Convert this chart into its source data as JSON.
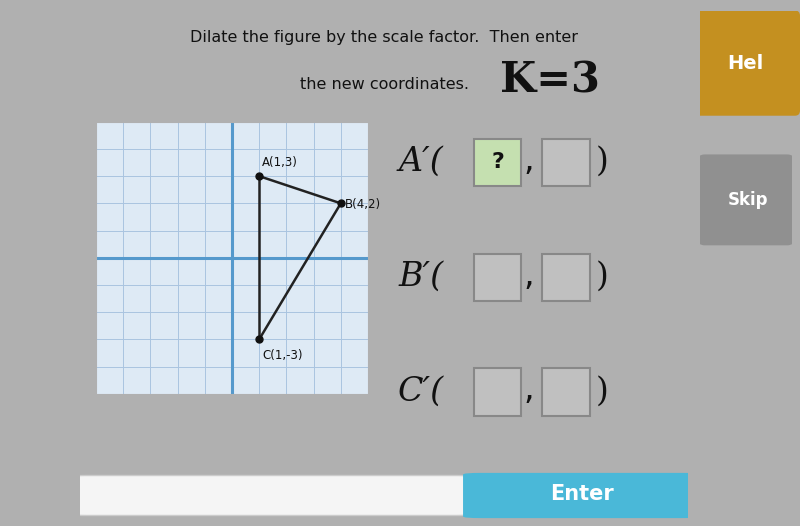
{
  "bg_color": "#b0b0b0",
  "card_color": "#ffffff",
  "title_line1": "Dilate the figure by the scale factor.  Then enter",
  "title_line2": "the new coordinates.",
  "grid_bg": "#deeaf5",
  "grid_color": "#aac4e0",
  "axis_color": "#5599cc",
  "points": {
    "A": [
      1,
      3
    ],
    "B": [
      4,
      2
    ],
    "C": [
      1,
      -3
    ]
  },
  "point_color": "#111111",
  "line_color": "#222222",
  "k_text": "K=3",
  "box_green": "#c5e0b0",
  "box_gray": "#c0c0c0",
  "box_border": "#888888",
  "enter_bg": "#4ab8d8",
  "enter_text": "Enter",
  "help_bg": "#c49020",
  "skip_bg": "#909090",
  "input_bg": "#f5f5f5"
}
